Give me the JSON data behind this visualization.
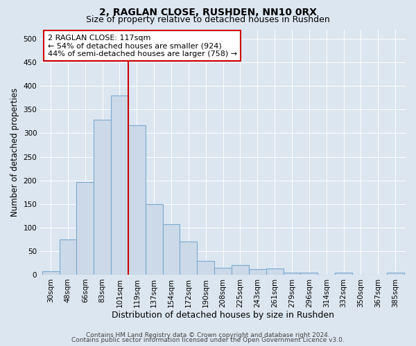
{
  "title": "2, RAGLAN CLOSE, RUSHDEN, NN10 0RX",
  "subtitle": "Size of property relative to detached houses in Rushden",
  "xlabel": "Distribution of detached houses by size in Rushden",
  "ylabel": "Number of detached properties",
  "categories": [
    "30sqm",
    "48sqm",
    "66sqm",
    "83sqm",
    "101sqm",
    "119sqm",
    "137sqm",
    "154sqm",
    "172sqm",
    "190sqm",
    "208sqm",
    "225sqm",
    "243sqm",
    "261sqm",
    "279sqm",
    "296sqm",
    "314sqm",
    "332sqm",
    "350sqm",
    "367sqm",
    "385sqm"
  ],
  "values": [
    8,
    75,
    197,
    328,
    380,
    317,
    150,
    107,
    70,
    30,
    15,
    20,
    11,
    13,
    5,
    4,
    0,
    4,
    0,
    0,
    4
  ],
  "bar_color": "#ccd9e8",
  "bar_edge_color": "#7aaad0",
  "bar_width": 1.0,
  "vline_x": 4.5,
  "vline_color": "#cc0000",
  "annotation_title": "2 RAGLAN CLOSE: 117sqm",
  "annotation_line1": "← 54% of detached houses are smaller (924)",
  "annotation_line2": "44% of semi-detached houses are larger (758) →",
  "annotation_box_color": "#ffffff",
  "annotation_box_edge": "#cc0000",
  "ylim": [
    0,
    520
  ],
  "yticks": [
    0,
    50,
    100,
    150,
    200,
    250,
    300,
    350,
    400,
    450,
    500
  ],
  "bg_color": "#dce6f0",
  "plot_bg_color": "#dce6f0",
  "grid_color": "#ffffff",
  "footer1": "Contains HM Land Registry data © Crown copyright and database right 2024.",
  "footer2": "Contains public sector information licensed under the Open Government Licence v3.0.",
  "title_fontsize": 10,
  "subtitle_fontsize": 9,
  "xlabel_fontsize": 9,
  "ylabel_fontsize": 8.5,
  "tick_fontsize": 7.5,
  "footer_fontsize": 6.5,
  "ann_fontsize": 8
}
